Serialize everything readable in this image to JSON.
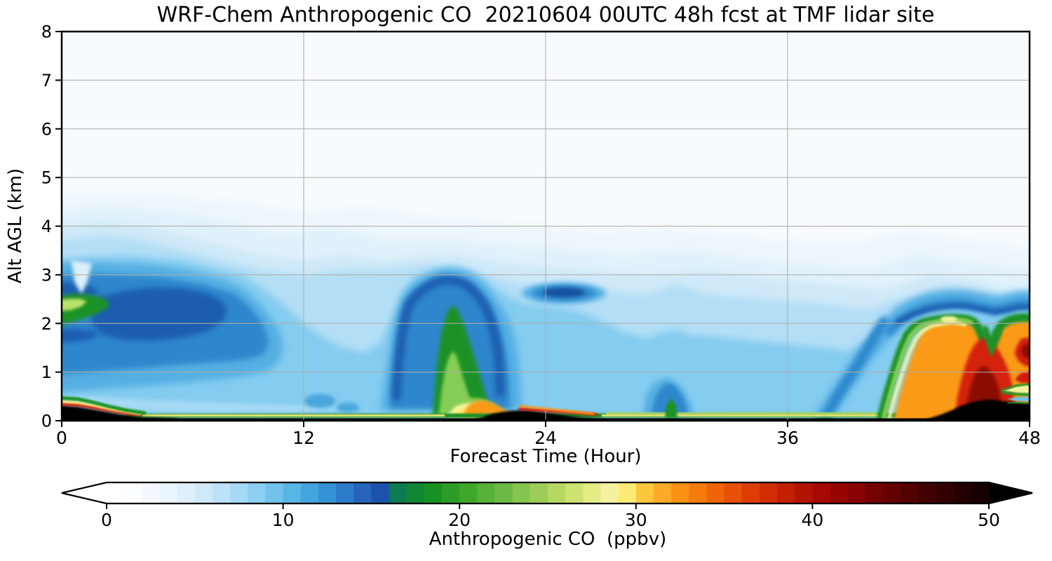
{
  "title": "WRF-Chem Anthropogenic CO  20210604 00UTC 48h fcst at TMF lidar site",
  "chart_data": {
    "type": "heatmap",
    "title": "WRF-Chem Anthropogenic CO  20210604 00UTC 48h fcst at TMF lidar site",
    "xlabel": "Forecast Time (Hour)",
    "ylabel": "Alt AGL (km)",
    "xlim": [
      0,
      48
    ],
    "ylim": [
      0,
      8
    ],
    "x_ticks": [
      0,
      12,
      24,
      36,
      48
    ],
    "y_ticks": [
      0,
      1,
      2,
      3,
      4,
      5,
      6,
      7,
      8
    ],
    "grid": true,
    "legend_position": "bottom-colorbar",
    "colorbar": {
      "label": "Anthropogenic CO  (ppbv)",
      "ticks": [
        0,
        10,
        20,
        30,
        40,
        50
      ],
      "range": [
        0,
        50
      ],
      "extend": "both",
      "under_color": "#ffffff",
      "over_color": "#000000",
      "anchors": [
        [
          0,
          "#ffffff"
        ],
        [
          1,
          "#fbfdff"
        ],
        [
          2,
          "#f3f9fe"
        ],
        [
          3,
          "#eaf5fd"
        ],
        [
          4,
          "#def0fc"
        ],
        [
          5,
          "#cfe9fa"
        ],
        [
          6,
          "#bce2f8"
        ],
        [
          7,
          "#a5d9f5"
        ],
        [
          8,
          "#8ccff1"
        ],
        [
          9,
          "#72c3ec"
        ],
        [
          10,
          "#58b5e6"
        ],
        [
          11,
          "#44a4de"
        ],
        [
          12,
          "#3592d5"
        ],
        [
          13,
          "#2c7cc9"
        ],
        [
          14,
          "#2664bc"
        ],
        [
          15,
          "#1c52ab"
        ],
        [
          16,
          "#0e7a52"
        ],
        [
          17,
          "#108632"
        ],
        [
          18,
          "#179122"
        ],
        [
          19,
          "#2c9c27"
        ],
        [
          20,
          "#40a72d"
        ],
        [
          21,
          "#56b139"
        ],
        [
          22,
          "#6dbb44"
        ],
        [
          23,
          "#85c44f"
        ],
        [
          24,
          "#9dcd59"
        ],
        [
          25,
          "#b5d863"
        ],
        [
          26,
          "#cde270"
        ],
        [
          27,
          "#e3ec85"
        ],
        [
          28,
          "#f4f2a0"
        ],
        [
          29,
          "#fdeb76"
        ],
        [
          30,
          "#fcc73f"
        ],
        [
          31,
          "#fbab27"
        ],
        [
          32,
          "#fa9114"
        ],
        [
          33,
          "#f67b0d"
        ],
        [
          34,
          "#ef6409"
        ],
        [
          35,
          "#e75006"
        ],
        [
          36,
          "#dd3d05"
        ],
        [
          37,
          "#d02d04"
        ],
        [
          38,
          "#c21f03"
        ],
        [
          39,
          "#b31303"
        ],
        [
          40,
          "#a50a02"
        ],
        [
          41,
          "#960502"
        ],
        [
          42,
          "#860302"
        ],
        [
          43,
          "#750202"
        ],
        [
          44,
          "#640202"
        ],
        [
          45,
          "#530101"
        ],
        [
          46,
          "#420101"
        ],
        [
          47,
          "#330101"
        ],
        [
          48,
          "#240000"
        ],
        [
          49,
          "#160000"
        ],
        [
          50,
          "#0b0000"
        ]
      ]
    },
    "features": [
      {
        "name": "surface-layer-initial",
        "hours": [
          0,
          4
        ],
        "alt_km": [
          0,
          0.35
        ],
        "approx_ppbv": "40 to >50 (black core)"
      },
      {
        "name": "elevated-green-patch",
        "hours": [
          0,
          2.5
        ],
        "alt_km": [
          1.75,
          2.5
        ],
        "approx_ppbv": "18-27"
      },
      {
        "name": "boundary-layer-blue-mass",
        "hours": [
          0,
          11
        ],
        "alt_km": [
          0.5,
          3.2
        ],
        "approx_ppbv": "8-15"
      },
      {
        "name": "thin-surface-stripe",
        "hours": [
          4,
          41
        ],
        "alt_km": [
          0,
          0.15
        ],
        "approx_ppbv": "17-40"
      },
      {
        "name": "midday-plume",
        "hours": [
          16.5,
          23.5
        ],
        "alt_km": [
          0,
          2.8
        ],
        "approx_ppbv": "core 18-30, surface >50"
      },
      {
        "name": "surface-hot-strip",
        "hours": [
          20.5,
          27
        ],
        "alt_km": [
          0,
          0.22
        ],
        "approx_ppbv": ">50 (black)"
      },
      {
        "name": "elevated-lens",
        "hours": [
          22.8,
          26.9
        ],
        "alt_km": [
          2.45,
          2.85
        ],
        "approx_ppbv": "12-15"
      },
      {
        "name": "small-surface-bump",
        "hours": [
          29.5,
          31.5
        ],
        "alt_km": [
          0,
          0.5
        ],
        "approx_ppbv": "15-20 (green core)"
      },
      {
        "name": "evening-plume",
        "hours": [
          40.5,
          48
        ],
        "alt_km": [
          0,
          2.15
        ],
        "approx_ppbv": "30-50, black surface core >50"
      },
      {
        "name": "right-edge-notch",
        "hours": [
          46.5,
          48
        ],
        "alt_km": [
          0.4,
          0.8
        ],
        "approx_ppbv": "yellow wedge 27-29 over blue wedge 8-10"
      },
      {
        "name": "upper-background",
        "hours": [
          0,
          48
        ],
        "alt_km": [
          4.5,
          8
        ],
        "approx_ppbv": "0-2"
      }
    ]
  },
  "colors": {
    "background": "#ffffff",
    "plot_background": "#f7fbfe",
    "gridline": "#b3aca4",
    "spine": "#000000"
  }
}
